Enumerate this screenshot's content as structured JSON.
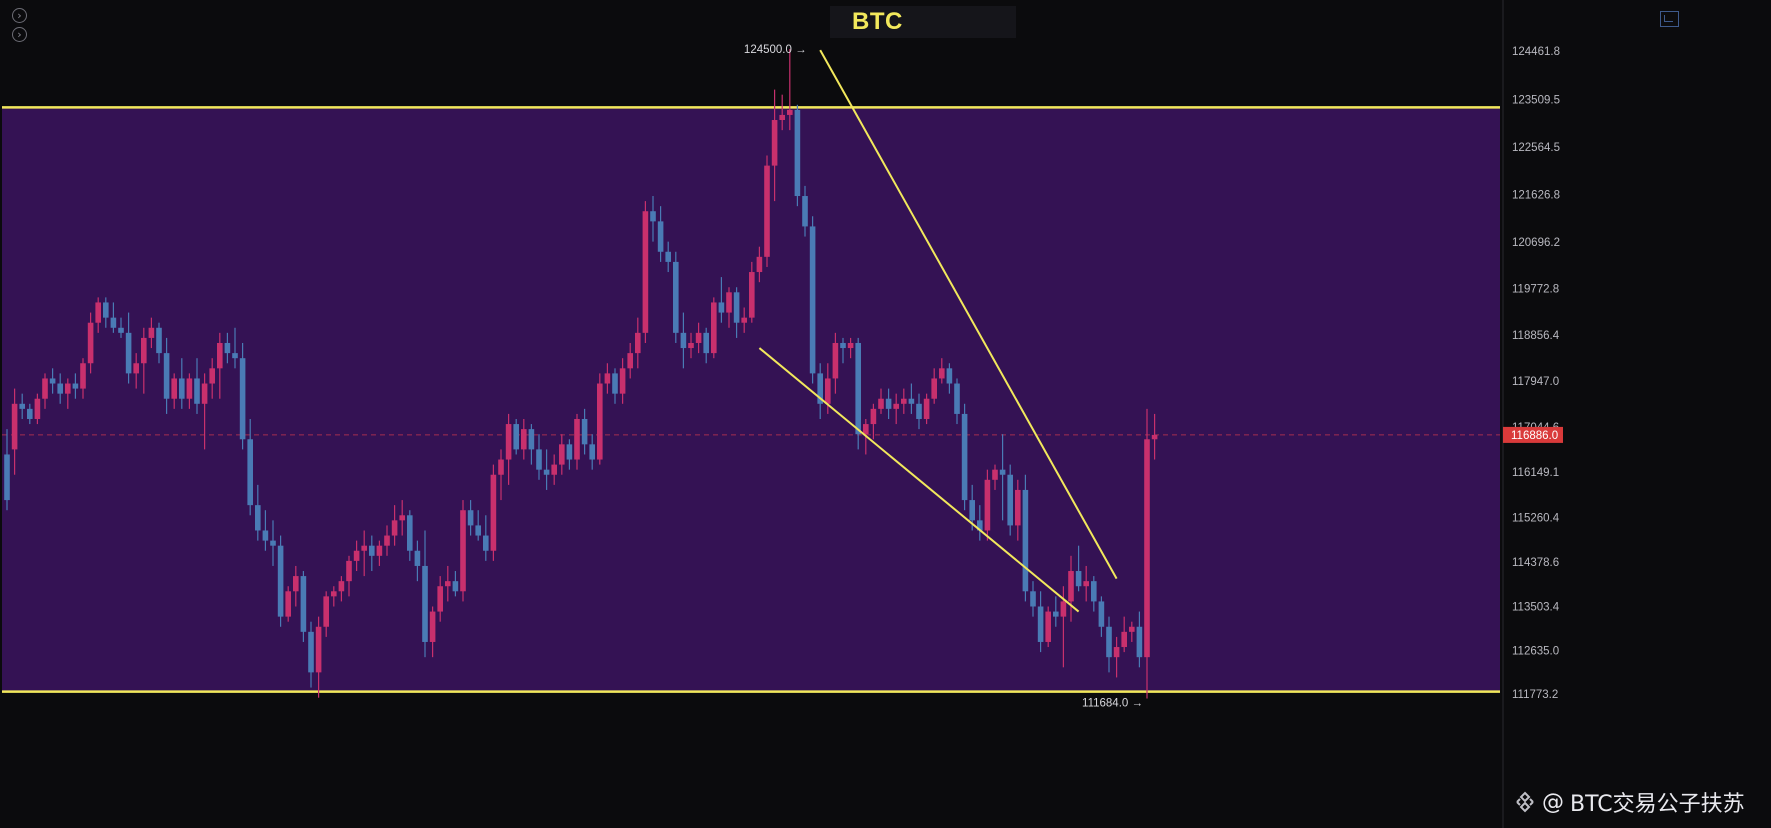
{
  "header": {
    "title": "BTC"
  },
  "nav": {
    "prev_label": "›",
    "next_label": "›"
  },
  "watermark": {
    "at": "@",
    "text": "BTC交易公子扶苏"
  },
  "colors": {
    "background": "#0b0b0d",
    "range_fill": "#341254",
    "range_line": "#f2e85c",
    "trend_line": "#f2e85c",
    "up_candle": "#c8306d",
    "down_candle": "#4a7bb5",
    "last_price_bg": "#d93a3a"
  },
  "chart_data": {
    "type": "candlestick",
    "title": "BTC",
    "y_axis": {
      "ticks": [
        "124461.8",
        "123509.5",
        "122564.5",
        "121626.8",
        "120696.2",
        "119772.8",
        "118856.4",
        "117947.0",
        "117044.6",
        "116149.1",
        "115260.4",
        "114378.6",
        "113503.4",
        "112635.0",
        "111773.2"
      ],
      "range": [
        111500,
        125000
      ]
    },
    "annotations": {
      "high_label": "124500.0 →",
      "high_value": 124500.0,
      "low_label": "111684.0 →",
      "low_value": 111684.0,
      "last_price": "116886.0",
      "last_price_value": 116886.0
    },
    "range_box": {
      "top": 123350,
      "bottom": 111820
    },
    "trend_lines": [
      {
        "name": "upper",
        "from": [
          107,
          124480
        ],
        "to": [
          146,
          114050
        ]
      },
      {
        "name": "lower",
        "from": [
          99,
          118600
        ],
        "to": [
          141,
          113400
        ]
      }
    ],
    "candles": [
      [
        116500,
        117000,
        115400,
        115600
      ],
      [
        116600,
        117800,
        116100,
        117500
      ],
      [
        117500,
        117700,
        117200,
        117400
      ],
      [
        117400,
        117500,
        117100,
        117200
      ],
      [
        117200,
        117700,
        117100,
        117600
      ],
      [
        117600,
        118100,
        117400,
        118000
      ],
      [
        118000,
        118200,
        117700,
        117900
      ],
      [
        117900,
        118100,
        117500,
        117700
      ],
      [
        117700,
        118000,
        117400,
        117900
      ],
      [
        117900,
        118100,
        117600,
        117800
      ],
      [
        117800,
        118400,
        117600,
        118300
      ],
      [
        118300,
        119300,
        118100,
        119100
      ],
      [
        119100,
        119600,
        118900,
        119500
      ],
      [
        119500,
        119600,
        119000,
        119200
      ],
      [
        119200,
        119500,
        118900,
        119000
      ],
      [
        119000,
        119200,
        118800,
        118900
      ],
      [
        118900,
        119300,
        117900,
        118100
      ],
      [
        118100,
        118500,
        117800,
        118300
      ],
      [
        118300,
        119000,
        117700,
        118800
      ],
      [
        118800,
        119200,
        118600,
        119000
      ],
      [
        119000,
        119100,
        118300,
        118500
      ],
      [
        118500,
        118800,
        117300,
        117600
      ],
      [
        117600,
        118100,
        117400,
        118000
      ],
      [
        118000,
        118400,
        117400,
        117600
      ],
      [
        117600,
        118100,
        117400,
        118000
      ],
      [
        118000,
        118400,
        117300,
        117500
      ],
      [
        117500,
        118100,
        116600,
        117900
      ],
      [
        117900,
        118400,
        117600,
        118200
      ],
      [
        118200,
        118900,
        117600,
        118700
      ],
      [
        118700,
        118900,
        118300,
        118500
      ],
      [
        118500,
        119000,
        118200,
        118400
      ],
      [
        118400,
        118700,
        116600,
        116800
      ],
      [
        116800,
        117200,
        115300,
        115500
      ],
      [
        115500,
        115900,
        114800,
        115000
      ],
      [
        115000,
        115400,
        114600,
        114800
      ],
      [
        114800,
        115200,
        114300,
        114700
      ],
      [
        114700,
        114900,
        113100,
        113300
      ],
      [
        113300,
        113900,
        113200,
        113800
      ],
      [
        113800,
        114300,
        113500,
        114100
      ],
      [
        114100,
        114200,
        112800,
        113000
      ],
      [
        113000,
        113200,
        111900,
        112200
      ],
      [
        112200,
        113300,
        111700,
        113100
      ],
      [
        113100,
        113800,
        112900,
        113700
      ],
      [
        113700,
        113900,
        113500,
        113800
      ],
      [
        113800,
        114100,
        113600,
        114000
      ],
      [
        114000,
        114500,
        113700,
        114400
      ],
      [
        114400,
        114800,
        114200,
        114600
      ],
      [
        114600,
        115000,
        114100,
        114700
      ],
      [
        114700,
        114900,
        114200,
        114500
      ],
      [
        114500,
        114800,
        114300,
        114700
      ],
      [
        114700,
        115100,
        114500,
        114900
      ],
      [
        114900,
        115500,
        114700,
        115200
      ],
      [
        115200,
        115600,
        114900,
        115300
      ],
      [
        115300,
        115400,
        114400,
        114600
      ],
      [
        114600,
        114800,
        114000,
        114300
      ],
      [
        114300,
        115000,
        112500,
        112800
      ],
      [
        112800,
        113500,
        112500,
        113400
      ],
      [
        113400,
        114100,
        113200,
        113900
      ],
      [
        113900,
        114300,
        113600,
        114000
      ],
      [
        114000,
        114200,
        113700,
        113800
      ],
      [
        113800,
        115600,
        113600,
        115400
      ],
      [
        115400,
        115600,
        114900,
        115100
      ],
      [
        115100,
        115400,
        114800,
        114900
      ],
      [
        114900,
        115300,
        114400,
        114600
      ],
      [
        114600,
        116300,
        114400,
        116100
      ],
      [
        116100,
        116600,
        115600,
        116400
      ],
      [
        116400,
        117300,
        115900,
        117100
      ],
      [
        117100,
        117200,
        116500,
        116600
      ],
      [
        116600,
        117200,
        116400,
        117000
      ],
      [
        117000,
        117100,
        116300,
        116600
      ],
      [
        116600,
        116900,
        116000,
        116200
      ],
      [
        116200,
        116600,
        115800,
        116100
      ],
      [
        116100,
        116500,
        115900,
        116300
      ],
      [
        116300,
        116900,
        116100,
        116700
      ],
      [
        116700,
        116800,
        116200,
        116400
      ],
      [
        116400,
        117300,
        116200,
        117200
      ],
      [
        117200,
        117400,
        116500,
        116700
      ],
      [
        116700,
        116900,
        116200,
        116400
      ],
      [
        116400,
        118100,
        116300,
        117900
      ],
      [
        117900,
        118300,
        117700,
        118100
      ],
      [
        118100,
        118200,
        117500,
        117700
      ],
      [
        117700,
        118400,
        117500,
        118200
      ],
      [
        118200,
        118700,
        118000,
        118500
      ],
      [
        118500,
        119200,
        118200,
        118900
      ],
      [
        118900,
        121500,
        118700,
        121300
      ],
      [
        121300,
        121600,
        120700,
        121100
      ],
      [
        121100,
        121400,
        120300,
        120500
      ],
      [
        120500,
        120700,
        120100,
        120300
      ],
      [
        120300,
        120500,
        118700,
        118900
      ],
      [
        118900,
        119300,
        118200,
        118600
      ],
      [
        118600,
        118900,
        118400,
        118700
      ],
      [
        118700,
        119100,
        118500,
        118900
      ],
      [
        118900,
        119000,
        118300,
        118500
      ],
      [
        118500,
        119600,
        118400,
        119500
      ],
      [
        119500,
        120000,
        119100,
        119300
      ],
      [
        119300,
        119800,
        119000,
        119700
      ],
      [
        119700,
        119800,
        118800,
        119100
      ],
      [
        119100,
        119400,
        118900,
        119200
      ],
      [
        119200,
        120300,
        119100,
        120100
      ],
      [
        120100,
        120600,
        119900,
        120400
      ],
      [
        120400,
        122400,
        120200,
        122200
      ],
      [
        122200,
        123700,
        121500,
        123100
      ],
      [
        123100,
        123600,
        122900,
        123200
      ],
      [
        123200,
        124500,
        122900,
        123300
      ],
      [
        123300,
        123400,
        121400,
        121600
      ],
      [
        121600,
        121800,
        120800,
        121000
      ],
      [
        121000,
        121200,
        117900,
        118100
      ],
      [
        118100,
        118300,
        117200,
        117500
      ],
      [
        117500,
        118300,
        117300,
        118000
      ],
      [
        118000,
        118900,
        117700,
        118700
      ],
      [
        118700,
        118800,
        118300,
        118600
      ],
      [
        118600,
        118800,
        118400,
        118700
      ],
      [
        118700,
        118800,
        116600,
        116900
      ],
      [
        116900,
        117200,
        116500,
        117100
      ],
      [
        117100,
        117500,
        116800,
        117400
      ],
      [
        117400,
        117800,
        117300,
        117600
      ],
      [
        117600,
        117800,
        117200,
        117400
      ],
      [
        117400,
        117700,
        117100,
        117500
      ],
      [
        117500,
        117800,
        117300,
        117600
      ],
      [
        117600,
        117900,
        117300,
        117500
      ],
      [
        117500,
        117700,
        117000,
        117200
      ],
      [
        117200,
        117700,
        117100,
        117600
      ],
      [
        117600,
        118200,
        117500,
        118000
      ],
      [
        118000,
        118400,
        117900,
        118200
      ],
      [
        118200,
        118300,
        117700,
        117900
      ],
      [
        117900,
        118000,
        117100,
        117300
      ],
      [
        117300,
        117500,
        115400,
        115600
      ],
      [
        115600,
        115900,
        115000,
        115200
      ],
      [
        115200,
        115500,
        114800,
        115000
      ],
      [
        115000,
        116200,
        114800,
        116000
      ],
      [
        116000,
        116300,
        115800,
        116200
      ],
      [
        116200,
        116900,
        115200,
        116100
      ],
      [
        116100,
        116300,
        114900,
        115100
      ],
      [
        115100,
        116000,
        114800,
        115800
      ],
      [
        115800,
        116100,
        113600,
        113800
      ],
      [
        113800,
        114000,
        113300,
        113500
      ],
      [
        113500,
        113800,
        112600,
        112800
      ],
      [
        112800,
        113500,
        112700,
        113400
      ],
      [
        113400,
        113700,
        113100,
        113300
      ],
      [
        113300,
        113900,
        112300,
        113600
      ],
      [
        113600,
        114500,
        113200,
        114200
      ],
      [
        114200,
        114700,
        113800,
        113900
      ],
      [
        113900,
        114300,
        113600,
        114000
      ],
      [
        114000,
        114100,
        113400,
        113600
      ],
      [
        113600,
        113700,
        112900,
        113100
      ],
      [
        113100,
        113300,
        112200,
        112500
      ],
      [
        112500,
        112900,
        112100,
        112700
      ],
      [
        112700,
        113300,
        112600,
        113000
      ],
      [
        113000,
        113200,
        112800,
        113100
      ],
      [
        113100,
        113400,
        112300,
        112500
      ],
      [
        112500,
        117400,
        111684,
        116800
      ],
      [
        116800,
        117300,
        116400,
        116886
      ]
    ]
  }
}
